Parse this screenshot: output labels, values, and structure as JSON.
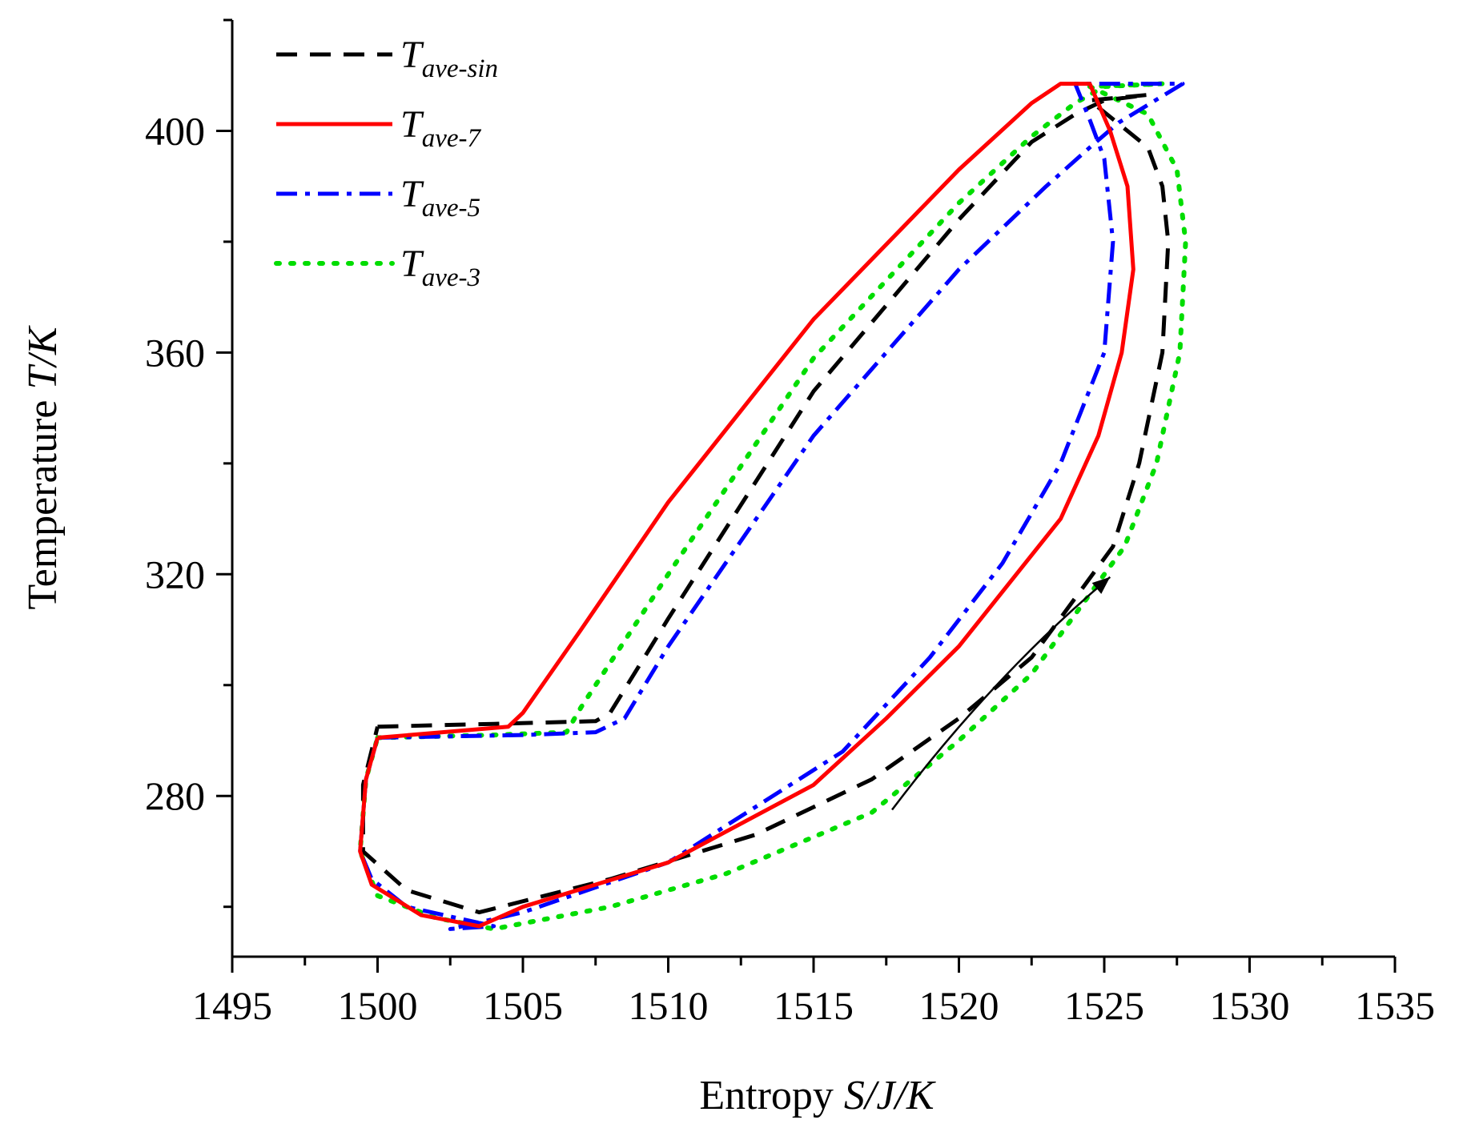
{
  "chart_data": {
    "type": "line",
    "title": "",
    "xlabel": {
      "prefix": "Entropy ",
      "italic": "S/J/K"
    },
    "ylabel": {
      "prefix": "Temperature ",
      "italic": "T/K"
    },
    "xlim": [
      1495,
      1535
    ],
    "ylim": [
      251,
      420
    ],
    "xticks": [
      1495,
      1500,
      1505,
      1510,
      1515,
      1520,
      1525,
      1530,
      1535
    ],
    "yticks": [
      280,
      320,
      360,
      400
    ],
    "legend_position": "top-left",
    "annotation": {
      "type": "arrow",
      "from": [
        1517.7,
        277.5
      ],
      "to": [
        1525.2,
        319.5
      ]
    },
    "series": [
      {
        "name": "T_ave-sin",
        "label_main": "T",
        "label_sub": "ave-sin",
        "color": "#000000",
        "dash": "dashed",
        "points": [
          [
            1500.0,
            292.5
          ],
          [
            1504.0,
            293.0
          ],
          [
            1507.5,
            293.5
          ],
          [
            1508.0,
            295.0
          ],
          [
            1510.0,
            312.0
          ],
          [
            1515.0,
            353.0
          ],
          [
            1520.0,
            384.0
          ],
          [
            1522.5,
            398.0
          ],
          [
            1524.0,
            403.0
          ],
          [
            1525.0,
            405.5
          ],
          [
            1526.5,
            406.5
          ],
          [
            1524.5,
            405.5
          ],
          [
            1526.5,
            397.0
          ],
          [
            1527.0,
            390.0
          ],
          [
            1527.2,
            380.0
          ],
          [
            1527.0,
            360.0
          ],
          [
            1526.2,
            340.0
          ],
          [
            1525.3,
            325.0
          ],
          [
            1522.5,
            305.0
          ],
          [
            1520.0,
            294.0
          ],
          [
            1517.0,
            283.0
          ],
          [
            1513.0,
            273.0
          ],
          [
            1508.0,
            265.0
          ],
          [
            1503.5,
            259.0
          ],
          [
            1501.0,
            263.0
          ],
          [
            1499.5,
            270.0
          ],
          [
            1499.5,
            282.0
          ],
          [
            1500.0,
            292.5
          ]
        ]
      },
      {
        "name": "T_ave-7",
        "label_main": "T",
        "label_sub": "ave-7",
        "color": "#ff0000",
        "dash": "solid",
        "points": [
          [
            1500.0,
            290.5
          ],
          [
            1504.5,
            292.5
          ],
          [
            1505.0,
            295.0
          ],
          [
            1507.0,
            310.0
          ],
          [
            1510.0,
            333.0
          ],
          [
            1515.0,
            366.0
          ],
          [
            1520.0,
            393.0
          ],
          [
            1522.5,
            405.0
          ],
          [
            1523.5,
            408.5
          ],
          [
            1524.5,
            408.5
          ],
          [
            1525.2,
            400.0
          ],
          [
            1525.8,
            390.0
          ],
          [
            1526.0,
            375.0
          ],
          [
            1525.6,
            360.0
          ],
          [
            1524.8,
            345.0
          ],
          [
            1523.5,
            330.0
          ],
          [
            1520.0,
            307.0
          ],
          [
            1517.5,
            294.0
          ],
          [
            1515.0,
            282.0
          ],
          [
            1510.0,
            268.0
          ],
          [
            1505.0,
            260.0
          ],
          [
            1503.5,
            256.5
          ],
          [
            1501.5,
            258.5
          ],
          [
            1499.8,
            264.0
          ],
          [
            1499.4,
            270.0
          ],
          [
            1499.6,
            283.0
          ],
          [
            1500.0,
            290.5
          ]
        ]
      },
      {
        "name": "T_ave-5",
        "label_main": "T",
        "label_sub": "ave-5",
        "color": "#0000ff",
        "dash": "dashdot",
        "points": [
          [
            1500.0,
            290.5
          ],
          [
            1505.0,
            291.0
          ],
          [
            1507.5,
            291.5
          ],
          [
            1508.5,
            294.0
          ],
          [
            1510.0,
            307.0
          ],
          [
            1515.0,
            345.0
          ],
          [
            1520.0,
            375.0
          ],
          [
            1523.0,
            390.0
          ],
          [
            1524.5,
            397.0
          ],
          [
            1525.5,
            401.5
          ],
          [
            1527.7,
            408.5
          ],
          [
            1525.0,
            408.5
          ],
          [
            1524.0,
            408.5
          ],
          [
            1524.5,
            402.0
          ],
          [
            1525.0,
            395.0
          ],
          [
            1525.3,
            380.0
          ],
          [
            1525.0,
            360.0
          ],
          [
            1523.5,
            340.0
          ],
          [
            1521.5,
            322.0
          ],
          [
            1519.0,
            305.0
          ],
          [
            1516.0,
            288.0
          ],
          [
            1510.0,
            268.0
          ],
          [
            1505.0,
            259.0
          ],
          [
            1502.5,
            256.0
          ],
          [
            1504.0,
            256.5
          ],
          [
            1501.0,
            260.0
          ],
          [
            1499.8,
            265.0
          ],
          [
            1499.4,
            270.0
          ],
          [
            1499.6,
            283.0
          ],
          [
            1500.0,
            290.5
          ]
        ]
      },
      {
        "name": "T_ave-3",
        "label_main": "T",
        "label_sub": "ave-3",
        "color": "#00dd00",
        "dash": "dotted",
        "points": [
          [
            1500.0,
            290.5
          ],
          [
            1504.0,
            291.0
          ],
          [
            1506.5,
            291.5
          ],
          [
            1507.0,
            296.0
          ],
          [
            1510.0,
            320.0
          ],
          [
            1515.0,
            359.0
          ],
          [
            1520.0,
            387.0
          ],
          [
            1522.5,
            399.0
          ],
          [
            1524.0,
            405.0
          ],
          [
            1525.0,
            408.0
          ],
          [
            1527.0,
            408.5
          ],
          [
            1524.5,
            408.0
          ],
          [
            1526.5,
            403.0
          ],
          [
            1527.5,
            393.0
          ],
          [
            1527.8,
            380.0
          ],
          [
            1527.6,
            360.0
          ],
          [
            1526.8,
            340.0
          ],
          [
            1525.7,
            325.0
          ],
          [
            1522.5,
            302.0
          ],
          [
            1520.0,
            290.0
          ],
          [
            1517.0,
            277.0
          ],
          [
            1512.0,
            266.0
          ],
          [
            1508.0,
            260.0
          ],
          [
            1504.0,
            256.0
          ],
          [
            1502.0,
            258.0
          ],
          [
            1500.0,
            262.0
          ],
          [
            1499.4,
            270.0
          ],
          [
            1499.6,
            283.0
          ],
          [
            1500.0,
            290.5
          ]
        ]
      }
    ]
  }
}
